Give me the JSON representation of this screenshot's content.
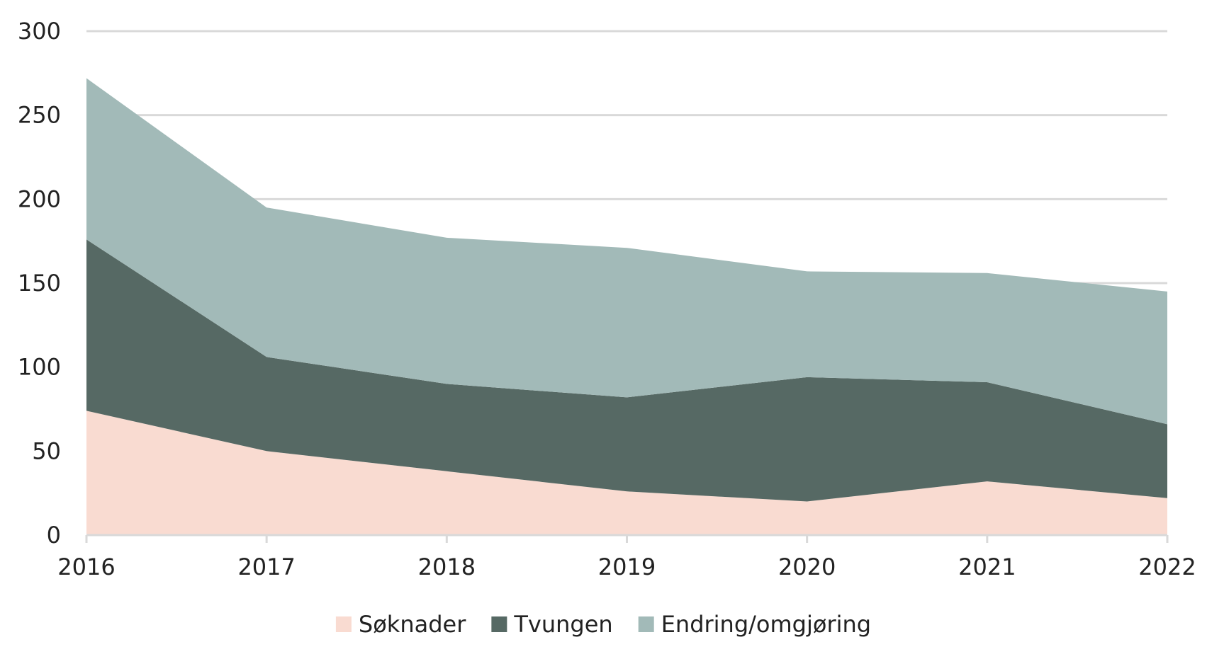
{
  "chart_data": {
    "type": "area",
    "stacked": true,
    "x": [
      "2016",
      "2017",
      "2018",
      "2019",
      "2020",
      "2021",
      "2022"
    ],
    "series": [
      {
        "name": "Søknader",
        "color": "#f9dbd1",
        "values": [
          74,
          50,
          38,
          26,
          20,
          32,
          22
        ]
      },
      {
        "name": "Tvungen",
        "color": "#566964",
        "values": [
          102,
          56,
          52,
          56,
          74,
          59,
          44
        ]
      },
      {
        "name": "Endring/omgjøring",
        "color": "#a2bab8",
        "values": [
          96,
          89,
          87,
          89,
          63,
          65,
          79
        ]
      }
    ],
    "ylim": [
      0,
      300
    ],
    "yticks": [
      "0",
      "50",
      "100",
      "150",
      "200",
      "250",
      "300"
    ],
    "grid": true,
    "legend": "bottom",
    "title": "",
    "xlabel": "",
    "ylabel": ""
  }
}
